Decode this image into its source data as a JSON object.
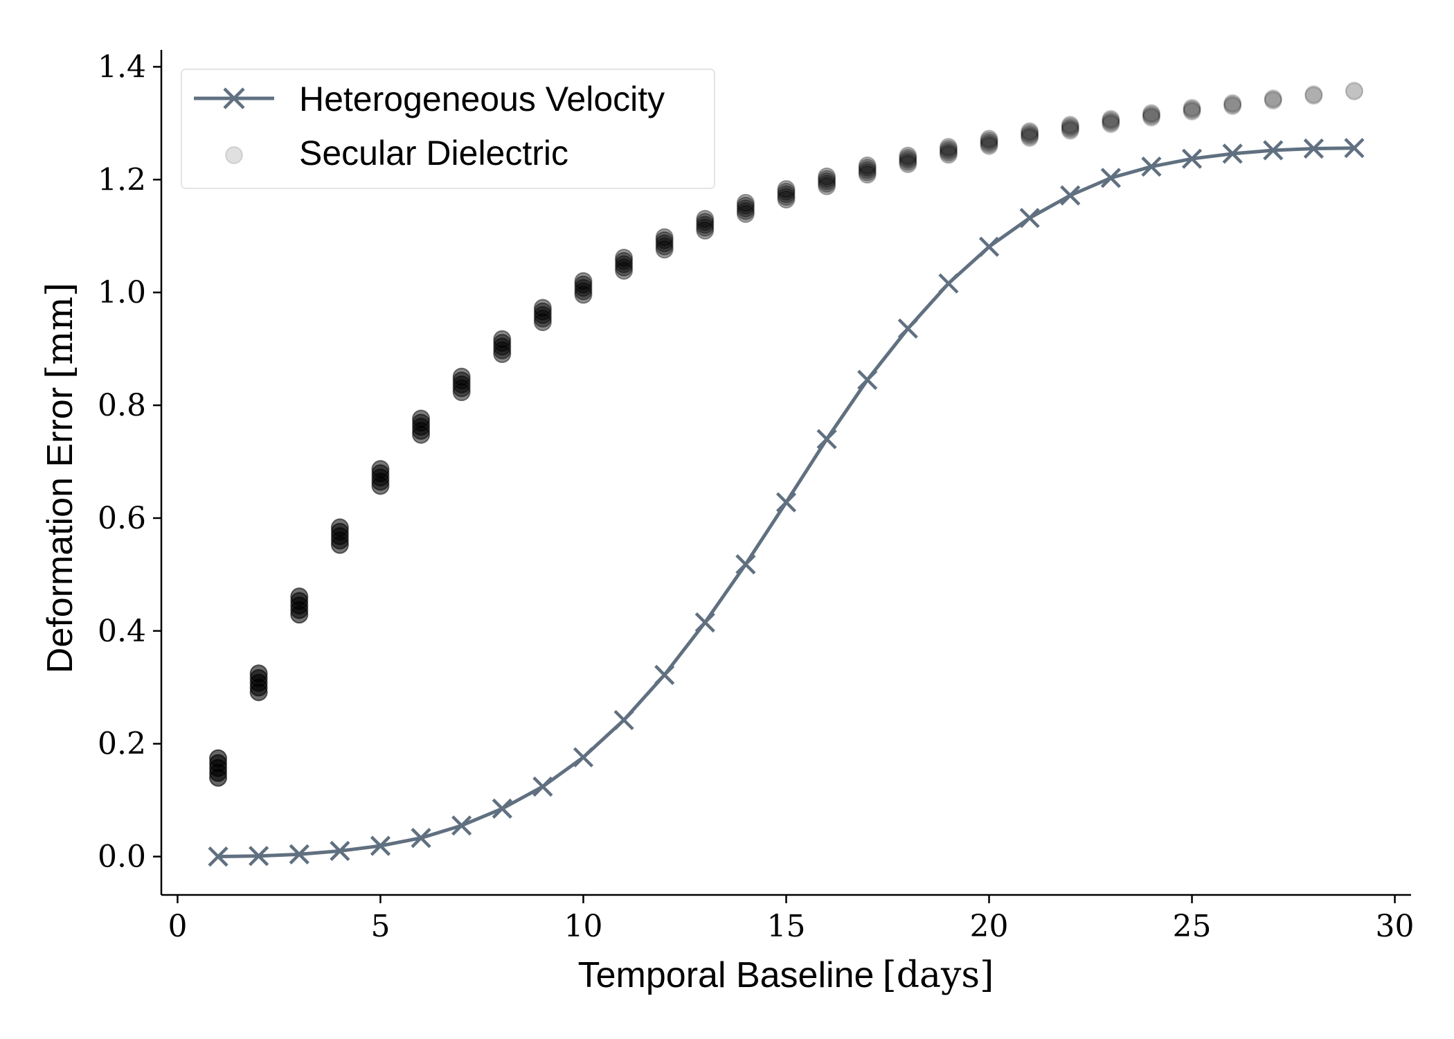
{
  "chart_data": {
    "type": "line",
    "title": "",
    "xlabel": {
      "text": "Temporal Baseline",
      "unit": "days"
    },
    "ylabel": {
      "text": "Deformation Error",
      "unit": "mm"
    },
    "xlim": [
      -0.4,
      30.4
    ],
    "ylim": [
      -0.068,
      1.43
    ],
    "xticks": [
      0,
      5,
      10,
      15,
      20,
      25,
      30
    ],
    "yticks": [
      0.0,
      0.2,
      0.4,
      0.6,
      0.8,
      1.0,
      1.2,
      1.4
    ],
    "xtick_labels": [
      "0",
      "5",
      "10",
      "15",
      "20",
      "25",
      "30"
    ],
    "ytick_labels": [
      "0.0",
      "0.2",
      "0.4",
      "0.6",
      "0.8",
      "1.0",
      "1.2",
      "1.4"
    ],
    "grid": false,
    "legend_position": "top-left",
    "series": [
      {
        "name": "Heterogeneous Velocity",
        "style": "line-with-x-markers",
        "color": "#607080",
        "x": [
          1,
          2,
          3,
          4,
          5,
          6,
          7,
          8,
          9,
          10,
          11,
          12,
          13,
          14,
          15,
          16,
          17,
          18,
          19,
          20,
          21,
          22,
          23,
          24,
          25,
          26,
          27,
          28,
          29
        ],
        "y": [
          0.0,
          0.001,
          0.004,
          0.01,
          0.019,
          0.033,
          0.055,
          0.085,
          0.124,
          0.176,
          0.242,
          0.322,
          0.415,
          0.518,
          0.628,
          0.74,
          0.845,
          0.936,
          1.016,
          1.081,
          1.132,
          1.172,
          1.203,
          1.223,
          1.237,
          1.246,
          1.252,
          1.255,
          1.256
        ]
      },
      {
        "name": "Secular Dielectric",
        "style": "scatter-translucent",
        "color": "#000000",
        "x": [
          1,
          2,
          3,
          4,
          5,
          6,
          7,
          8,
          9,
          10,
          11,
          12,
          13,
          14,
          15,
          16,
          17,
          18,
          19,
          20,
          21,
          22,
          23,
          24,
          25,
          26,
          27,
          28,
          29
        ],
        "y": [
          0.157,
          0.308,
          0.445,
          0.568,
          0.672,
          0.762,
          0.837,
          0.904,
          0.96,
          1.008,
          1.05,
          1.087,
          1.12,
          1.149,
          1.174,
          1.197,
          1.217,
          1.235,
          1.251,
          1.266,
          1.28,
          1.292,
          1.303,
          1.314,
          1.324,
          1.333,
          1.342,
          1.35,
          1.357
        ]
      }
    ]
  }
}
